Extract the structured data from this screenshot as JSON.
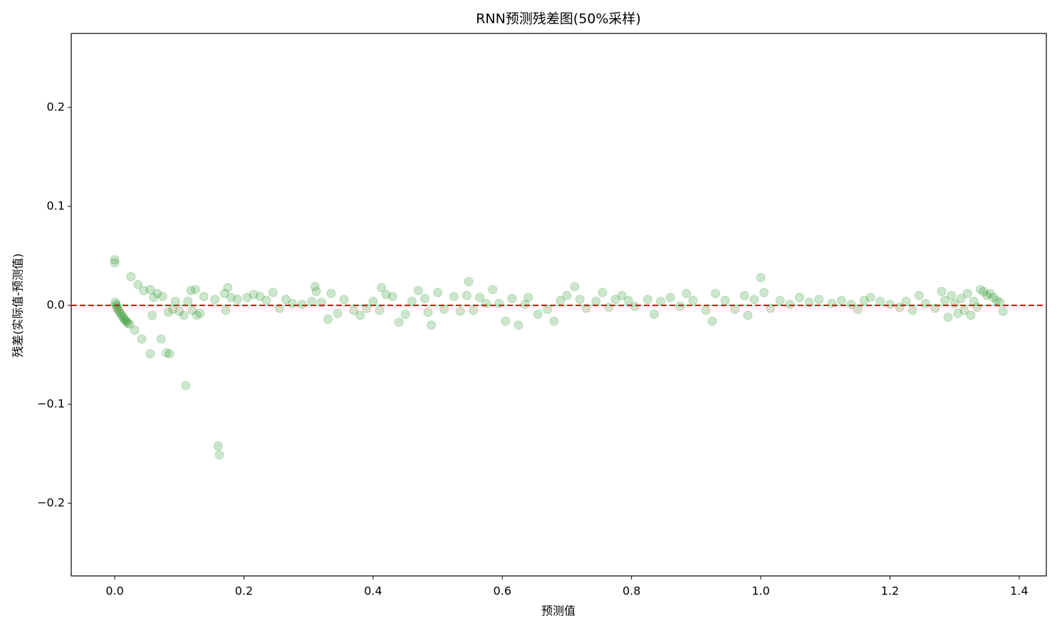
{
  "chart_data": {
    "type": "scatter",
    "title": "RNN预测残差图(50%采样)",
    "x_label": "预测值",
    "y_label": "残差(实际值-预测值)",
    "xlim": [
      -0.0673,
      1.442
    ],
    "ylim": [
      -0.2734,
      0.2748
    ],
    "xticks": [
      {
        "value": 0,
        "label": "0.0"
      },
      0.2,
      0.4,
      0.6,
      0.8,
      {
        "value": 1,
        "label": "1.0"
      },
      1.2,
      1.4
    ],
    "yticks": [
      {
        "value": -0.2,
        "label": "−0.2"
      },
      {
        "value": -0.1,
        "label": "−0.1"
      },
      {
        "value": 0,
        "label": "0.0"
      },
      0.1,
      0.2
    ],
    "hline": {
      "value": 0,
      "color": "#e41a1c"
    },
    "alpha": 0.2,
    "series": [
      {
        "color": "#008000",
        "x": [
          0.0,
          0.0,
          0.001,
          0.002,
          0.003,
          0.004,
          0.006,
          0.008,
          0.01,
          0.012,
          0.014,
          0.016,
          0.018,
          0.02,
          0.023,
          0.025,
          0.031,
          0.036,
          0.042,
          0.045,
          0.055,
          0.055,
          0.058,
          0.06,
          0.066,
          0.072,
          0.074,
          0.08,
          0.083,
          0.085,
          0.09,
          0.094,
          0.1,
          0.107,
          0.11,
          0.113,
          0.118,
          0.12,
          0.125,
          0.127,
          0.132,
          0.138,
          0.155,
          0.16,
          0.162,
          0.17,
          0.172,
          0.175,
          0.18,
          0.19,
          0.205,
          0.215,
          0.225,
          0.235,
          0.245,
          0.255,
          0.265,
          0.275,
          0.29,
          0.305,
          0.31,
          0.312,
          0.32,
          0.33,
          0.335,
          0.345,
          0.355,
          0.37,
          0.38,
          0.39,
          0.4,
          0.41,
          0.413,
          0.42,
          0.43,
          0.44,
          0.45,
          0.46,
          0.47,
          0.48,
          0.485,
          0.49,
          0.5,
          0.51,
          0.525,
          0.535,
          0.545,
          0.548,
          0.555,
          0.565,
          0.575,
          0.585,
          0.595,
          0.605,
          0.615,
          0.625,
          0.635,
          0.64,
          0.655,
          0.67,
          0.68,
          0.69,
          0.7,
          0.712,
          0.72,
          0.73,
          0.745,
          0.755,
          0.765,
          0.775,
          0.785,
          0.795,
          0.805,
          0.825,
          0.835,
          0.845,
          0.86,
          0.875,
          0.885,
          0.895,
          0.915,
          0.925,
          0.93,
          0.945,
          0.96,
          0.975,
          0.98,
          0.99,
          1.0,
          1.005,
          1.015,
          1.03,
          1.045,
          1.06,
          1.075,
          1.09,
          1.11,
          1.125,
          1.14,
          1.15,
          1.16,
          1.17,
          1.185,
          1.2,
          1.215,
          1.225,
          1.235,
          1.245,
          1.255,
          1.27,
          1.28,
          1.285,
          1.29,
          1.295,
          1.3,
          1.305,
          1.31,
          1.315,
          1.32,
          1.325,
          1.33,
          1.335,
          1.34,
          1.345,
          1.35,
          1.355,
          1.36,
          1.365,
          1.37,
          1.375
        ],
        "values": [
          0.046,
          0.043,
          0.003,
          0.001,
          -0.001,
          -0.003,
          -0.005,
          -0.007,
          -0.009,
          -0.011,
          -0.013,
          -0.015,
          -0.016,
          -0.018,
          -0.019,
          0.029,
          -0.025,
          0.021,
          -0.034,
          0.015,
          -0.049,
          0.016,
          -0.01,
          0.008,
          0.012,
          -0.034,
          0.009,
          -0.048,
          -0.007,
          -0.049,
          -0.004,
          0.004,
          -0.006,
          -0.01,
          -0.081,
          0.004,
          0.015,
          -0.005,
          0.016,
          -0.01,
          -0.008,
          0.009,
          0.006,
          -0.142,
          -0.151,
          0.012,
          -0.005,
          0.018,
          0.008,
          0.006,
          0.008,
          0.011,
          0.009,
          0.005,
          0.013,
          -0.003,
          0.006,
          0.002,
          0.001,
          0.004,
          0.019,
          0.014,
          0.003,
          -0.014,
          0.012,
          -0.008,
          0.006,
          -0.005,
          -0.01,
          -0.003,
          0.004,
          -0.005,
          0.018,
          0.011,
          0.009,
          -0.017,
          -0.009,
          0.004,
          0.015,
          0.007,
          -0.007,
          -0.02,
          0.013,
          -0.004,
          0.009,
          -0.006,
          0.01,
          0.024,
          -0.005,
          0.008,
          0.002,
          0.016,
          0.002,
          -0.016,
          0.007,
          -0.02,
          0.001,
          0.008,
          -0.009,
          -0.004,
          -0.016,
          0.005,
          0.01,
          0.019,
          0.006,
          -0.003,
          0.004,
          0.013,
          -0.002,
          0.006,
          0.01,
          0.005,
          -0.001,
          0.006,
          -0.009,
          0.004,
          0.008,
          -0.001,
          0.012,
          0.005,
          -0.005,
          -0.016,
          0.012,
          0.005,
          -0.004,
          0.01,
          -0.01,
          0.006,
          0.028,
          0.013,
          -0.003,
          0.005,
          0.001,
          0.008,
          0.003,
          0.006,
          0.002,
          0.005,
          0.001,
          -0.004,
          0.005,
          0.008,
          0.004,
          0.001,
          -0.002,
          0.004,
          -0.005,
          0.01,
          0.002,
          -0.003,
          0.014,
          0.005,
          -0.012,
          0.01,
          0.002,
          -0.008,
          0.007,
          -0.005,
          0.012,
          -0.01,
          0.004,
          -0.002,
          0.016,
          0.014,
          0.01,
          0.012,
          0.008,
          0.005,
          0.003,
          -0.006
        ]
      }
    ]
  }
}
